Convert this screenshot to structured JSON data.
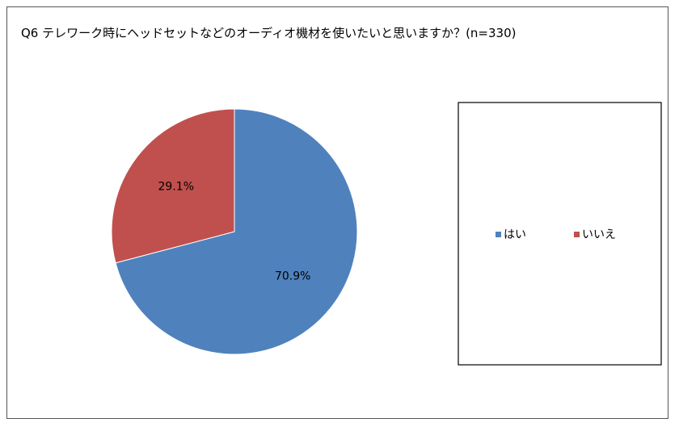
{
  "chart_data": {
    "type": "pie",
    "title": "Q6 テレワーク時にヘッドセットなどのオーディオ機材を使いたいと思いますか？(n=330)",
    "categories": [
      "はい",
      "いいえ"
    ],
    "values": [
      70.9,
      29.1
    ],
    "value_labels": [
      "70.9%",
      "29.1%"
    ],
    "colors": [
      "#4f81bd",
      "#c0504d"
    ],
    "legend": "right"
  }
}
